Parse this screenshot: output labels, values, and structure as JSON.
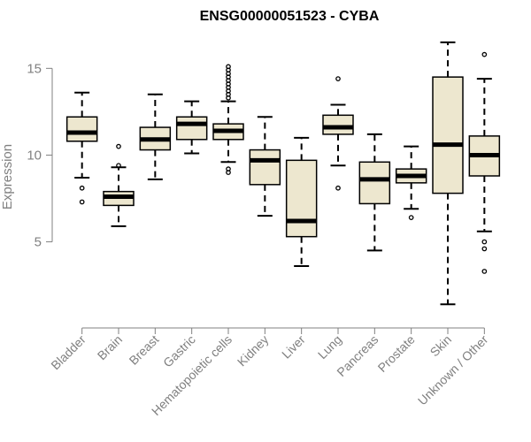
{
  "chart_data": {
    "type": "box",
    "title": "ENSG00000051523 - CYBA",
    "xlabel": "",
    "ylabel": "Expression",
    "ylim": [
      0.8,
      16.8
    ],
    "yticks": [
      5,
      10,
      15
    ],
    "grid": false,
    "legend": "none",
    "colors": {
      "box_fill": "#ede7cf",
      "stroke": "#000000",
      "axis": "#808080",
      "text": "#808080"
    },
    "categories": [
      "Bladder",
      "Brain",
      "Breast",
      "Gastric",
      "Hematopoietic cells",
      "Kidney",
      "Liver",
      "Lung",
      "Pancreas",
      "Prostate",
      "Skin",
      "Unknown / Other"
    ],
    "boxes": [
      {
        "label": "Bladder",
        "whisker_low": 8.7,
        "q1": 10.8,
        "median": 11.3,
        "q3": 12.2,
        "whisker_high": 13.6,
        "outliers": [
          8.1,
          7.3
        ]
      },
      {
        "label": "Brain",
        "whisker_low": 5.9,
        "q1": 7.1,
        "median": 7.6,
        "q3": 7.9,
        "whisker_high": 9.3,
        "outliers": [
          10.5,
          9.4
        ]
      },
      {
        "label": "Breast",
        "whisker_low": 8.6,
        "q1": 10.3,
        "median": 10.9,
        "q3": 11.6,
        "whisker_high": 13.5,
        "outliers": []
      },
      {
        "label": "Gastric",
        "whisker_low": 10.1,
        "q1": 10.9,
        "median": 11.8,
        "q3": 12.2,
        "whisker_high": 13.1,
        "outliers": []
      },
      {
        "label": "Hematopoietic cells",
        "whisker_low": 9.6,
        "q1": 10.9,
        "median": 11.4,
        "q3": 11.8,
        "whisker_high": 13.1,
        "outliers": [
          9.0,
          9.2,
          13.3,
          13.5,
          13.7,
          13.9,
          14.1,
          14.3,
          14.5,
          14.7,
          14.9,
          15.1
        ]
      },
      {
        "label": "Kidney",
        "whisker_low": 6.5,
        "q1": 8.3,
        "median": 9.7,
        "q3": 10.3,
        "whisker_high": 12.2,
        "outliers": []
      },
      {
        "label": "Liver",
        "whisker_low": 3.6,
        "q1": 5.3,
        "median": 6.2,
        "q3": 9.7,
        "whisker_high": 11.0,
        "outliers": []
      },
      {
        "label": "Lung",
        "whisker_low": 9.4,
        "q1": 11.2,
        "median": 11.6,
        "q3": 12.3,
        "whisker_high": 12.9,
        "outliers": [
          14.4,
          8.1
        ]
      },
      {
        "label": "Pancreas",
        "whisker_low": 4.5,
        "q1": 7.2,
        "median": 8.6,
        "q3": 9.6,
        "whisker_high": 11.2,
        "outliers": []
      },
      {
        "label": "Prostate",
        "whisker_low": 6.9,
        "q1": 8.4,
        "median": 8.8,
        "q3": 9.2,
        "whisker_high": 10.5,
        "outliers": [
          6.4
        ]
      },
      {
        "label": "Skin",
        "whisker_low": 1.4,
        "q1": 7.8,
        "median": 10.6,
        "q3": 14.5,
        "whisker_high": 16.5,
        "outliers": []
      },
      {
        "label": "Unknown / Other",
        "whisker_low": 5.6,
        "q1": 8.8,
        "median": 10.0,
        "q3": 11.1,
        "whisker_high": 14.4,
        "outliers": [
          15.8,
          5.0,
          4.6,
          3.3
        ]
      }
    ]
  }
}
